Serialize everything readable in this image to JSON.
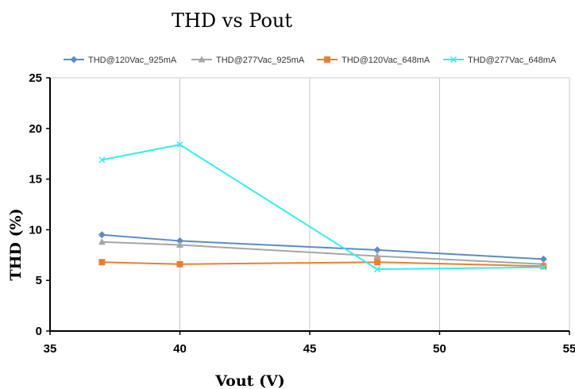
{
  "chart_data": {
    "type": "line",
    "title": "THD vs Pout",
    "xlabel": "Vout (V)",
    "ylabel": "THD (%)",
    "xlim": [
      35,
      55
    ],
    "ylim": [
      0,
      25
    ],
    "x_ticks": [
      35,
      40,
      45,
      50,
      55
    ],
    "y_ticks": [
      0,
      5,
      10,
      15,
      20,
      25
    ],
    "grid": {
      "vertical": true,
      "horizontal": false
    },
    "legend_position": "top",
    "series": [
      {
        "name": "THD@120Vac_925mA",
        "color": "#5B8BC9",
        "marker": "diamond",
        "x": [
          37,
          40,
          47.6,
          54
        ],
        "y": [
          9.5,
          8.9,
          8.0,
          7.1
        ]
      },
      {
        "name": "THD@277Vac_925mA",
        "color": "#A5A5A5",
        "marker": "triangle",
        "x": [
          37,
          40,
          47.6,
          54
        ],
        "y": [
          8.8,
          8.5,
          7.4,
          6.6
        ]
      },
      {
        "name": "THD@120Vac_648mA",
        "color": "#ED7D31",
        "marker": "square",
        "x": [
          37,
          40,
          47.6,
          54
        ],
        "y": [
          6.8,
          6.6,
          6.8,
          6.4
        ]
      },
      {
        "name": "THD@277Vac_648mA",
        "color": "#33EEEE",
        "marker": "x",
        "x": [
          37,
          40,
          47.6,
          54
        ],
        "y": [
          16.9,
          18.4,
          6.1,
          6.3
        ]
      }
    ]
  }
}
